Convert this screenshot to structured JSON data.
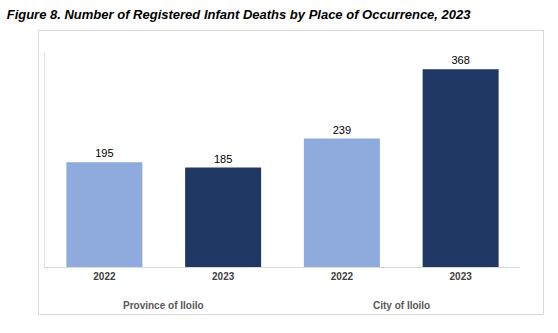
{
  "chart_data": {
    "type": "bar",
    "title": "Figure 8. Number of Registered Infant Deaths by Place of Occurrence, 2023",
    "categories": [
      "2022",
      "2023",
      "2022",
      "2023"
    ],
    "category_groups": [
      "Province of Iloilo",
      "Province of Iloilo",
      "City of Iloilo",
      "City of Iloilo"
    ],
    "values": [
      195,
      185,
      239,
      368
    ],
    "colors": [
      "#8faadc",
      "#1f3864",
      "#8faadc",
      "#1f3864"
    ],
    "ylim": [
      0,
      400
    ],
    "grid": false,
    "data_labels": true,
    "tick_labels": "x"
  }
}
